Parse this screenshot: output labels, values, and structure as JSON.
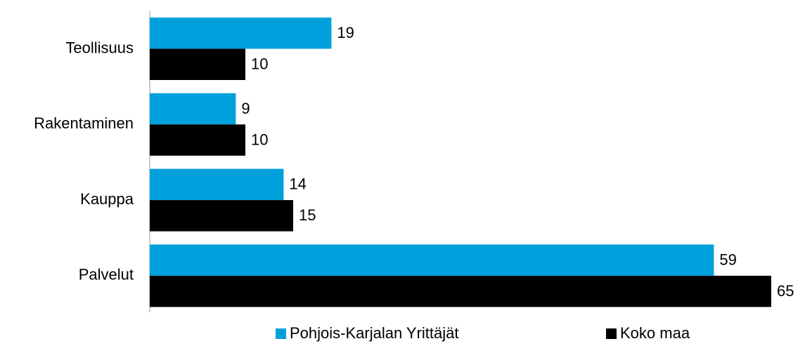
{
  "chart_data": {
    "type": "hbar",
    "categories": [
      "Teollisuus",
      "Rakentaminen",
      "Kauppa",
      "Palvelut"
    ],
    "series": [
      {
        "name": "Pohjois-Karjalan Yrittäjät",
        "color": "#00a0dc",
        "values": [
          19,
          9,
          14,
          59
        ]
      },
      {
        "name": "Koko maa",
        "color": "#000000",
        "values": [
          10,
          10,
          15,
          65
        ]
      }
    ],
    "legend": "bottom"
  }
}
